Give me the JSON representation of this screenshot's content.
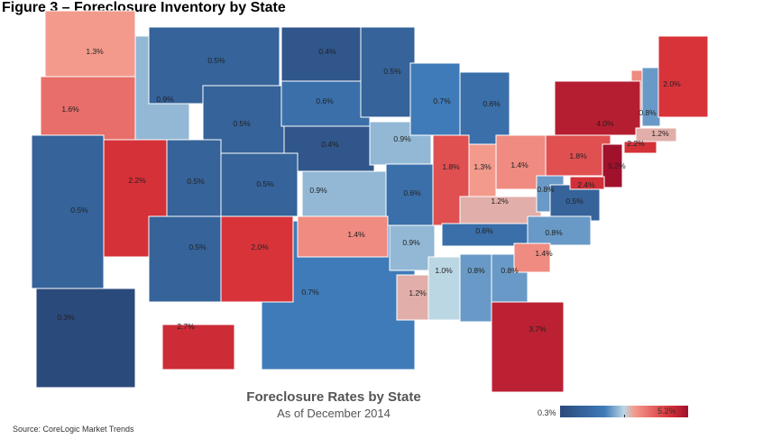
{
  "figure_title": "Figure 3 – Foreclosure Inventory by State",
  "map_title": "Foreclosure Rates by State",
  "map_subtitle": "As of December 2014",
  "legend": {
    "min_label": "0.3%",
    "max_label": "5.2%",
    "min": 0.3,
    "max": 5.2,
    "colors": [
      "#2b4a7c",
      "#bcd7e4",
      "#f39a8c",
      "#a0112c"
    ]
  },
  "source": "Source: CoreLogic Market Trends",
  "regions": [
    {
      "label": "0.7%",
      "value": 0.7
    },
    {
      "label": "1.3%",
      "value": 1.3
    },
    {
      "label": "1.6%",
      "value": 1.6
    },
    {
      "label": "0.9%",
      "value": 0.9
    },
    {
      "label": "0.5%",
      "value": 0.5
    },
    {
      "label": "0.5%",
      "value": 0.5
    },
    {
      "label": "0.4%",
      "value": 0.4
    },
    {
      "label": "0.6%",
      "value": 0.6
    },
    {
      "label": "0.4%",
      "value": 0.4
    },
    {
      "label": "0.5%",
      "value": 0.5
    },
    {
      "label": "0.9%",
      "value": 0.9
    },
    {
      "label": "0.7%",
      "value": 0.7
    },
    {
      "label": "0.6%",
      "value": 0.6
    },
    {
      "label": "2.2%",
      "value": 2.2
    },
    {
      "label": "0.5%",
      "value": 0.5
    },
    {
      "label": "0.5%",
      "value": 0.5
    },
    {
      "label": "0.5%",
      "value": 0.5
    },
    {
      "label": "0.9%",
      "value": 0.9
    },
    {
      "label": "0.6%",
      "value": 0.6
    },
    {
      "label": "1.8%",
      "value": 1.8
    },
    {
      "label": "1.3%",
      "value": 1.3
    },
    {
      "label": "1.4%",
      "value": 1.4
    },
    {
      "label": "1.2%",
      "value": 1.2
    },
    {
      "label": "0.8%",
      "value": 0.8
    },
    {
      "label": "0.5%",
      "value": 0.5
    },
    {
      "label": "1.8%",
      "value": 1.8
    },
    {
      "label": "4.0%",
      "value": 4.0
    },
    {
      "label": "0.8%",
      "value": 0.8
    },
    {
      "label": "2.0%",
      "value": 2.0
    },
    {
      "label": "1.2%",
      "value": 1.2
    },
    {
      "label": "2.2%",
      "value": 2.2
    },
    {
      "label": "5.2%",
      "value": 5.2
    },
    {
      "label": "2.4%",
      "value": 2.4
    },
    {
      "label": "0.5%",
      "value": 0.5
    },
    {
      "label": "2.0%",
      "value": 2.0
    },
    {
      "label": "1.4%",
      "value": 1.4
    },
    {
      "label": "0.9%",
      "value": 0.9
    },
    {
      "label": "1.2%",
      "value": 1.2
    },
    {
      "label": "1.0%",
      "value": 1.0
    },
    {
      "label": "0.8%",
      "value": 0.8
    },
    {
      "label": "0.8%",
      "value": 0.8
    },
    {
      "label": "0.6%",
      "value": 0.6
    },
    {
      "label": "0.8%",
      "value": 0.8
    },
    {
      "label": "1.4%",
      "value": 1.4
    },
    {
      "label": "3.7%",
      "value": 3.7
    },
    {
      "label": "0.3%",
      "value": 0.3
    },
    {
      "label": "2.7%",
      "value": 2.7
    }
  ]
}
